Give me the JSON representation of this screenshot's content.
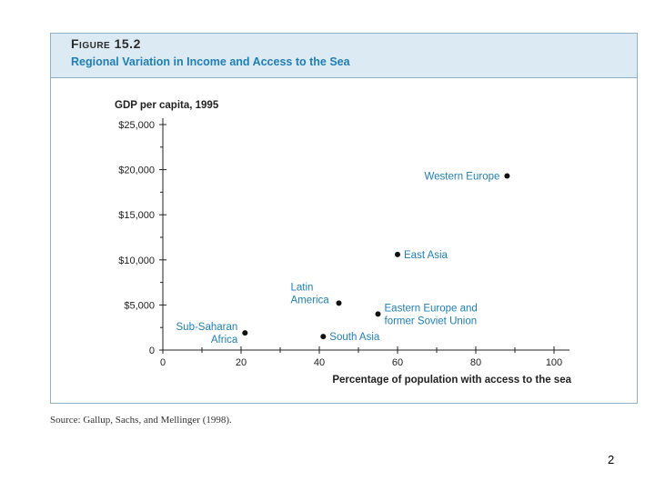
{
  "figure": {
    "label": "Figure 15.2",
    "title": "Regional Variation in Income and Access to the Sea"
  },
  "source": "Source: Gallup, Sachs, and Mellinger (1998).",
  "page_number": "2",
  "chart_data": {
    "type": "scatter",
    "title": "Regional Variation in Income and Access to the Sea",
    "xlabel": "Percentage of population with access to the sea",
    "ylabel": "GDP per capita, 1995",
    "xlim": [
      0,
      100
    ],
    "ylim": [
      0,
      25000
    ],
    "x_ticks": [
      0,
      20,
      40,
      60,
      80,
      100
    ],
    "x_tick_labels": [
      "0",
      "20",
      "40",
      "60",
      "80",
      "100"
    ],
    "y_ticks": [
      0,
      5000,
      10000,
      15000,
      20000,
      25000
    ],
    "y_tick_labels": [
      "0",
      "$5,000",
      "$10,000",
      "$15,000",
      "$20,000",
      "$25,000"
    ],
    "grid": false,
    "points": [
      {
        "name": "Sub-Saharan Africa",
        "label_lines": [
          "Sub-Saharan",
          "Africa"
        ],
        "x": 21,
        "y": 1900,
        "label_side": "left"
      },
      {
        "name": "South Asia",
        "label_lines": [
          "South Asia"
        ],
        "x": 41,
        "y": 1500,
        "label_side": "right"
      },
      {
        "name": "Latin America",
        "label_lines": [
          "Latin",
          "America"
        ],
        "x": 45,
        "y": 5200,
        "label_side": "left-above"
      },
      {
        "name": "Eastern Europe and former Soviet Union",
        "label_lines": [
          "Eastern Europe and",
          "former Soviet Union"
        ],
        "x": 55,
        "y": 4000,
        "label_side": "right"
      },
      {
        "name": "East Asia",
        "label_lines": [
          "East Asia"
        ],
        "x": 60,
        "y": 10600,
        "label_side": "right"
      },
      {
        "name": "Western Europe",
        "label_lines": [
          "Western Europe"
        ],
        "x": 88,
        "y": 19300,
        "label_side": "left"
      }
    ],
    "colors": {
      "axis": "#222222",
      "point": "#111111",
      "label": "#1f7fb5",
      "title": "#1f7fb5"
    }
  }
}
